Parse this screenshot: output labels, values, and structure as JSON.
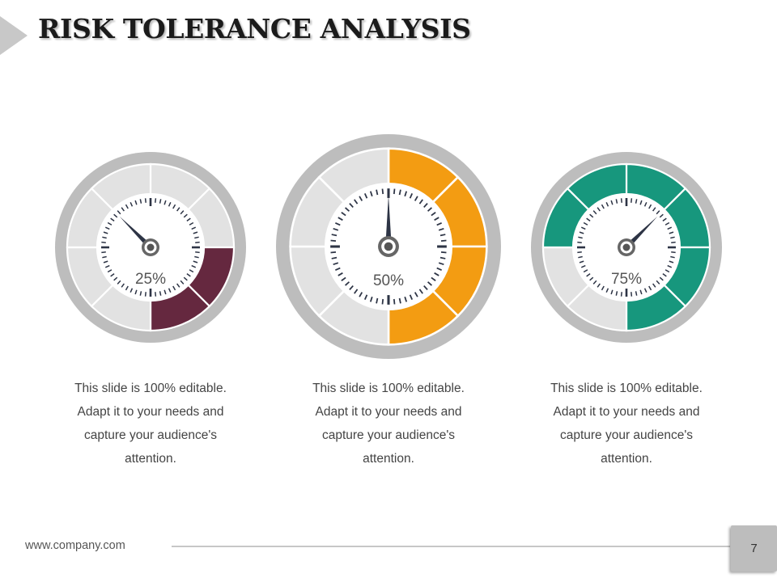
{
  "slide": {
    "title": "RISK TOLERANCE ANALYSIS"
  },
  "gauges": [
    {
      "label": "25%",
      "value": 0.25,
      "color": "#65283f",
      "description": [
        "This slide is 100% editable.",
        "Adapt it to your needs and",
        "capture your audience's",
        "attention."
      ]
    },
    {
      "label": "50%",
      "value": 0.5,
      "color": "#f39c12",
      "description": [
        "This slide is 100% editable.",
        "Adapt it to your needs and",
        "capture your audience's",
        "attention."
      ]
    },
    {
      "label": "75%",
      "value": 0.75,
      "color": "#17977d",
      "description": [
        "This slide is 100% editable.",
        "Adapt it to your needs and",
        "capture your audience's",
        "attention."
      ]
    }
  ],
  "footer": {
    "url": "www.company.com",
    "page_number": "7"
  }
}
